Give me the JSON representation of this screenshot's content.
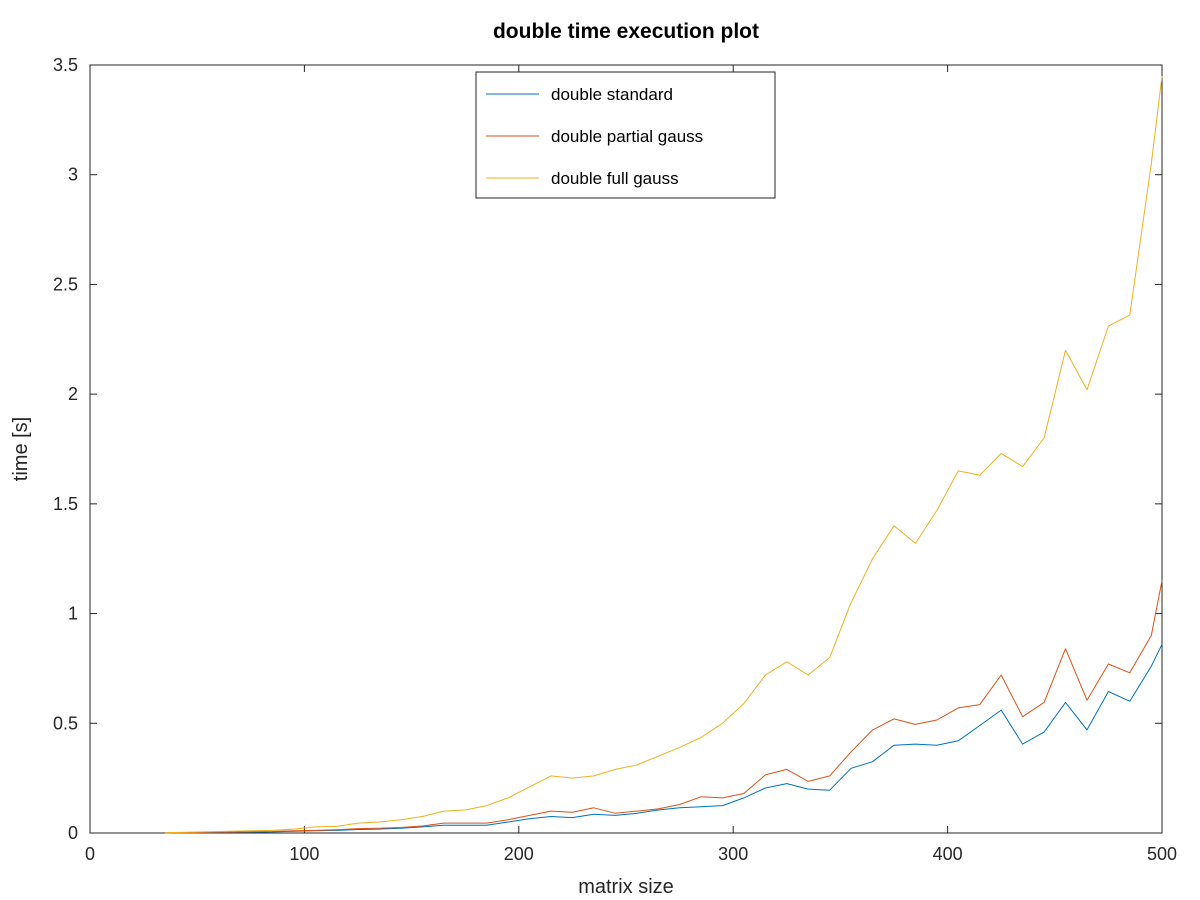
{
  "chart_data": {
    "type": "line",
    "title": "double time execution plot",
    "xlabel": "matrix size",
    "ylabel": "time [s]",
    "xlim": [
      0,
      500
    ],
    "ylim": [
      0,
      3.5
    ],
    "xticks": [
      0,
      100,
      200,
      300,
      400,
      500
    ],
    "xtick_labels": [
      "0",
      "100",
      "200",
      "300",
      "400",
      "500"
    ],
    "yticks": [
      0,
      0.5,
      1,
      1.5,
      2,
      2.5,
      3,
      3.5
    ],
    "ytick_labels": [
      "0",
      "0.5",
      "1",
      "1.5",
      "2",
      "2.5",
      "3",
      "3.5"
    ],
    "grid": false,
    "legend_position": "top-center",
    "x": [
      35,
      45,
      55,
      65,
      75,
      85,
      95,
      105,
      115,
      125,
      135,
      145,
      155,
      165,
      175,
      185,
      195,
      205,
      215,
      225,
      235,
      245,
      255,
      265,
      275,
      285,
      295,
      305,
      315,
      325,
      335,
      345,
      355,
      365,
      375,
      385,
      395,
      405,
      415,
      425,
      435,
      445,
      455,
      465,
      475,
      485,
      495,
      500
    ],
    "series": [
      {
        "name": "double standard",
        "color": "#0072bd",
        "values": [
          0.0005,
          0.001,
          0.002,
          0.003,
          0.004,
          0.005,
          0.008,
          0.01,
          0.012,
          0.016,
          0.018,
          0.022,
          0.028,
          0.035,
          0.035,
          0.035,
          0.05,
          0.065,
          0.075,
          0.07,
          0.085,
          0.08,
          0.09,
          0.105,
          0.115,
          0.12,
          0.125,
          0.16,
          0.205,
          0.225,
          0.2,
          0.195,
          0.295,
          0.325,
          0.4,
          0.405,
          0.4,
          0.42,
          0.49,
          0.56,
          0.405,
          0.46,
          0.595,
          0.47,
          0.645,
          0.6,
          0.76,
          0.86
        ]
      },
      {
        "name": "double partial gauss",
        "color": "#d95319",
        "values": [
          0.0008,
          0.0015,
          0.003,
          0.004,
          0.006,
          0.007,
          0.01,
          0.012,
          0.015,
          0.02,
          0.022,
          0.025,
          0.032,
          0.045,
          0.045,
          0.045,
          0.06,
          0.08,
          0.1,
          0.095,
          0.115,
          0.09,
          0.1,
          0.11,
          0.13,
          0.165,
          0.16,
          0.18,
          0.265,
          0.29,
          0.235,
          0.26,
          0.37,
          0.47,
          0.52,
          0.495,
          0.515,
          0.57,
          0.585,
          0.72,
          0.53,
          0.595,
          0.84,
          0.605,
          0.77,
          0.73,
          0.9,
          1.15
        ]
      },
      {
        "name": "double full gauss",
        "color": "#edb120",
        "values": [
          0.001,
          0.003,
          0.006,
          0.008,
          0.01,
          0.012,
          0.018,
          0.028,
          0.03,
          0.045,
          0.05,
          0.06,
          0.075,
          0.1,
          0.105,
          0.125,
          0.16,
          0.21,
          0.26,
          0.25,
          0.26,
          0.29,
          0.31,
          0.35,
          0.39,
          0.435,
          0.5,
          0.59,
          0.72,
          0.78,
          0.72,
          0.8,
          1.05,
          1.25,
          1.4,
          1.32,
          1.47,
          1.65,
          1.63,
          1.73,
          1.67,
          1.8,
          2.2,
          2.02,
          2.31,
          2.36,
          3.05,
          3.45
        ]
      }
    ]
  }
}
